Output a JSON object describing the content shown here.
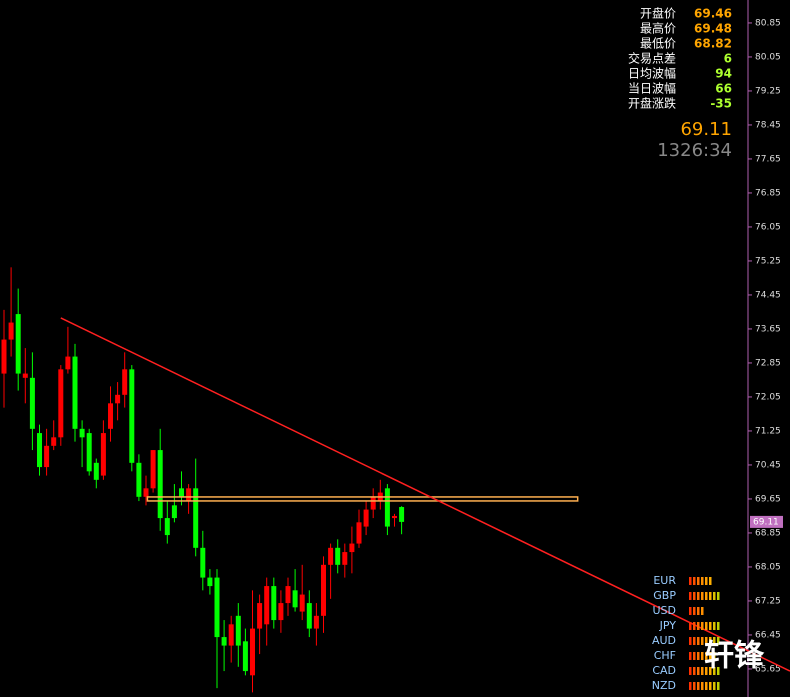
{
  "chart_data": {
    "type": "candlestick",
    "open": [
      72.6,
      73.4,
      74.0,
      72.5,
      72.5,
      71.2,
      70.4,
      70.9,
      71.1,
      72.7,
      73.0,
      71.3,
      71.2,
      70.5,
      70.2,
      71.3,
      71.9,
      72.1,
      72.7,
      70.5,
      69.7,
      69.9,
      70.8,
      69.2,
      69.5,
      69.9,
      69.6,
      69.9,
      68.5,
      67.8,
      67.8,
      66.4,
      66.2,
      66.9,
      66.3,
      65.5,
      66.6,
      66.7,
      67.6,
      66.8,
      67.2,
      67.5,
      67.0,
      67.2,
      66.6,
      66.9,
      68.1,
      68.5,
      68.1,
      68.4,
      68.6,
      69.0,
      69.4,
      69.6,
      69.9,
      69.2,
      69.46
    ],
    "high": [
      74.1,
      75.1,
      74.6,
      73.2,
      73.1,
      71.4,
      71.3,
      71.5,
      72.8,
      73.7,
      73.3,
      71.5,
      71.3,
      70.6,
      71.5,
      72.3,
      72.4,
      73.1,
      72.8,
      70.7,
      70.2,
      70.8,
      71.3,
      69.6,
      70.0,
      70.3,
      70.0,
      70.6,
      68.9,
      68.0,
      68.0,
      66.8,
      66.9,
      67.2,
      66.6,
      67.5,
      67.4,
      67.8,
      67.8,
      67.5,
      67.8,
      68.0,
      68.1,
      67.5,
      67.2,
      68.3,
      68.6,
      68.7,
      68.6,
      69.0,
      69.4,
      69.6,
      69.9,
      70.1,
      70.0,
      69.3,
      69.48
    ],
    "low": [
      71.8,
      73.0,
      72.2,
      71.9,
      70.8,
      70.2,
      70.2,
      70.8,
      70.9,
      72.6,
      71.0,
      70.4,
      70.2,
      69.9,
      70.1,
      71.0,
      71.5,
      71.8,
      70.3,
      69.6,
      69.5,
      69.8,
      68.9,
      68.6,
      69.1,
      69.5,
      69.3,
      68.3,
      67.5,
      67.4,
      65.2,
      65.6,
      65.8,
      65.7,
      65.5,
      65.1,
      66.0,
      66.2,
      66.6,
      66.5,
      66.9,
      67.0,
      66.8,
      66.4,
      66.2,
      66.5,
      67.3,
      67.9,
      67.8,
      67.9,
      68.5,
      68.8,
      69.2,
      69.4,
      68.8,
      69.0,
      68.82
    ],
    "close": [
      73.4,
      73.8,
      72.6,
      72.6,
      71.3,
      70.4,
      70.9,
      71.1,
      72.7,
      73.0,
      71.3,
      71.1,
      70.3,
      70.1,
      71.2,
      71.9,
      72.1,
      72.7,
      70.5,
      69.7,
      69.9,
      70.8,
      69.2,
      68.8,
      69.2,
      69.7,
      69.9,
      68.5,
      67.8,
      67.6,
      66.4,
      66.2,
      66.7,
      66.2,
      65.6,
      66.6,
      67.2,
      67.6,
      66.8,
      67.2,
      67.6,
      67.1,
      67.4,
      66.6,
      66.9,
      68.1,
      68.5,
      68.1,
      68.4,
      68.6,
      69.1,
      69.4,
      69.7,
      69.8,
      69.0,
      69.25,
      69.11
    ],
    "up_color": "#ff0000",
    "down_color": "#00ff00",
    "ylim": [
      64.99,
      81.39
    ],
    "yticks": [
      80.85,
      80.05,
      79.25,
      78.45,
      77.65,
      76.85,
      76.05,
      75.25,
      74.45,
      73.65,
      72.85,
      72.05,
      71.25,
      70.45,
      69.65,
      68.85,
      68.05,
      67.25,
      66.45,
      65.65
    ],
    "last_price": 69.11,
    "trendline": {
      "x": [
        8,
        110.7
      ],
      "y": [
        73.91,
        65.6
      ],
      "color": "#ff2020"
    },
    "hline": {
      "value": 69.65,
      "x": [
        20.2,
        80.8
      ],
      "color": "#ffb050"
    },
    "info": {
      "labels": [
        "开盘价",
        "最高价",
        "最低价",
        "交易点差",
        "日均波幅",
        "当日波幅",
        "开盘涨跌"
      ],
      "values": [
        69.46,
        69.48,
        68.82,
        6,
        94,
        66,
        -35
      ],
      "colors": [
        "#ffa500",
        "#ffa500",
        "#ffa500",
        "#adff2f",
        "#adff2f",
        "#adff2f",
        "#adff2f"
      ]
    },
    "big_price": 69.11,
    "timer": "1326:34",
    "currencies": {
      "names": [
        "EUR",
        "GBP",
        "USD",
        "JPY",
        "AUD",
        "CHF",
        "CAD",
        "NZD"
      ],
      "strength": [
        6,
        8,
        4,
        8,
        8,
        7,
        8,
        8
      ]
    },
    "watermark": "轩锋"
  }
}
